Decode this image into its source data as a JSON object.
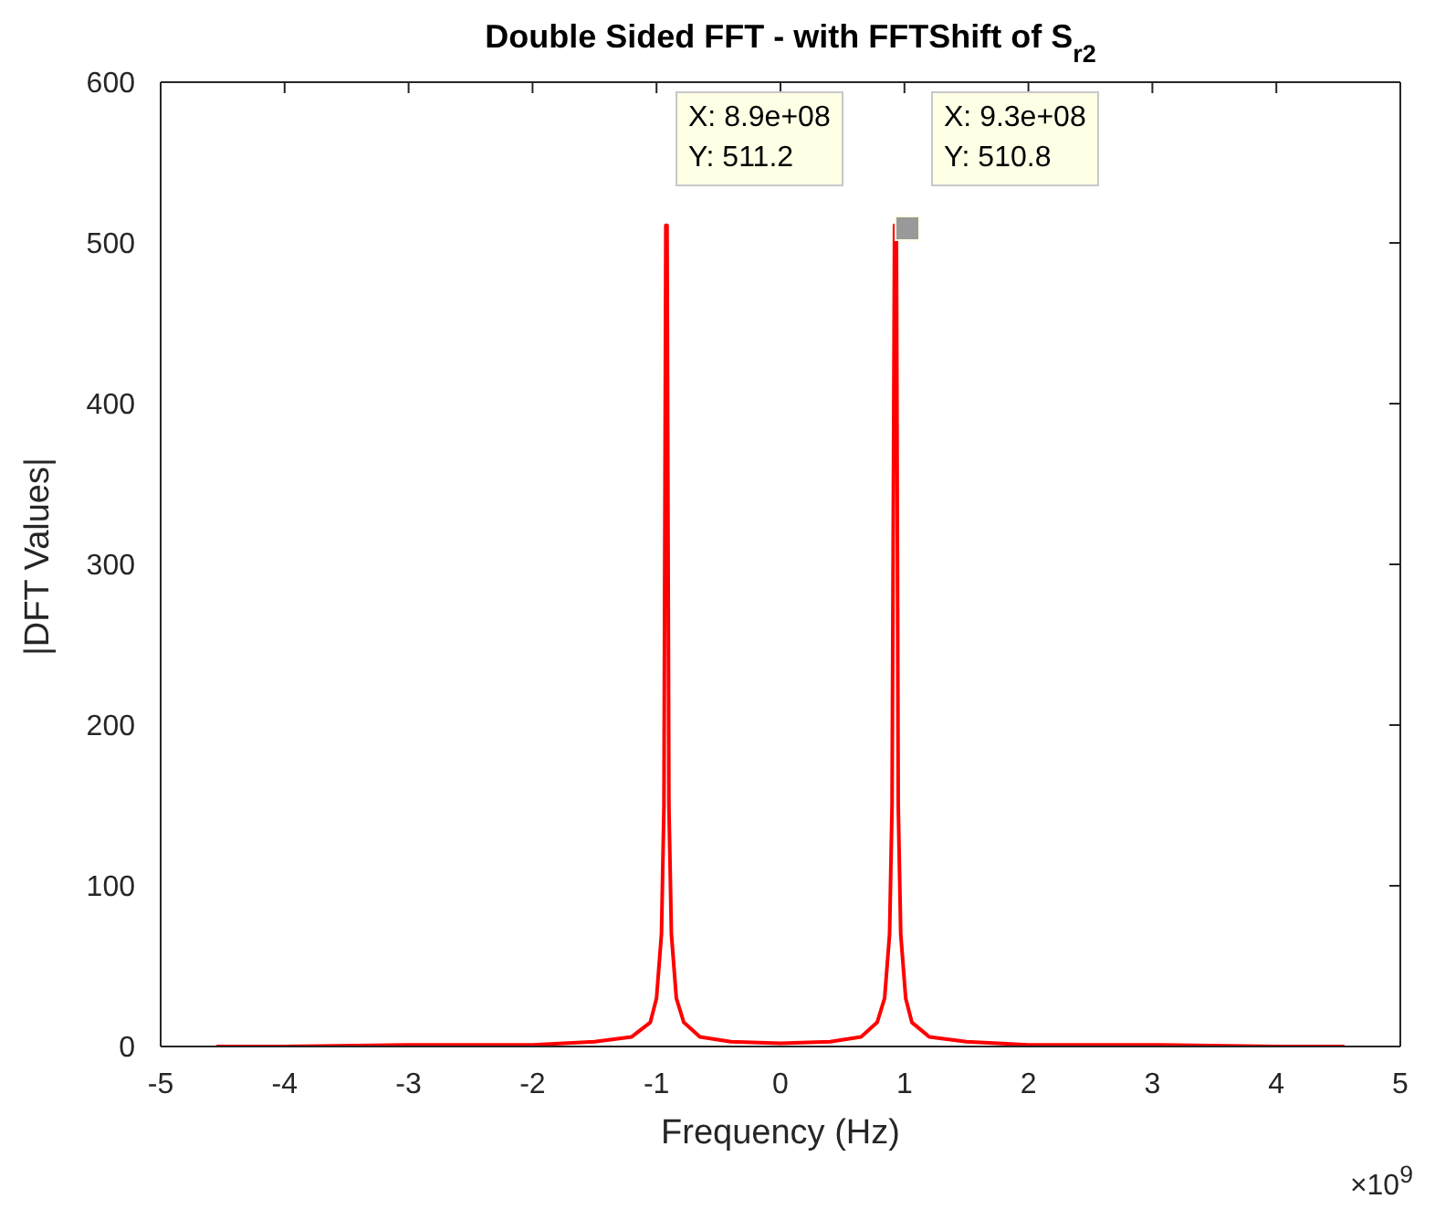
{
  "chart_data": {
    "type": "line",
    "title": "Double Sided FFT - with FFTShift of S$_{r2}$",
    "xlabel": "Frequency (Hz)",
    "ylabel": "|DFT Values|",
    "annotations": [
      "X: 8.9e+08\nY: 511.2",
      "X: 9.3e+08\nY: 510.8",
      "×10$^{9}$"
    ],
    "x": [
      -4.55,
      -4,
      -3,
      -2,
      -1.5,
      -1.2,
      -1.05,
      -1.0,
      -0.96,
      -0.94,
      -0.925,
      -0.915,
      -0.9,
      -0.88,
      -0.84,
      -0.78,
      -0.65,
      -0.4,
      0,
      0.4,
      0.65,
      0.78,
      0.84,
      0.88,
      0.9,
      0.92,
      0.935,
      0.95,
      0.97,
      1.01,
      1.06,
      1.2,
      1.5,
      2,
      3,
      4,
      4.55
    ],
    "series": [
      {
        "color": "#ff0000",
        "values": [
          0,
          0,
          1,
          1,
          3,
          6,
          15,
          30,
          70,
          150,
          511,
          511,
          150,
          70,
          30,
          15,
          6,
          3,
          2,
          3,
          6,
          15,
          30,
          70,
          150,
          511,
          510,
          150,
          70,
          30,
          15,
          6,
          3,
          1,
          1,
          0,
          0
        ]
      }
    ],
    "xlim": [
      -5,
      5
    ],
    "xticks": [
      -5,
      -4,
      -3,
      -2,
      -1,
      0,
      1,
      2,
      3,
      4,
      5
    ],
    "ylim": [
      0,
      600
    ],
    "yticks": [
      0,
      100,
      200,
      300,
      400,
      500,
      600
    ],
    "grid": false,
    "legend": false,
    "marker": "none",
    "line_style": "solid"
  }
}
